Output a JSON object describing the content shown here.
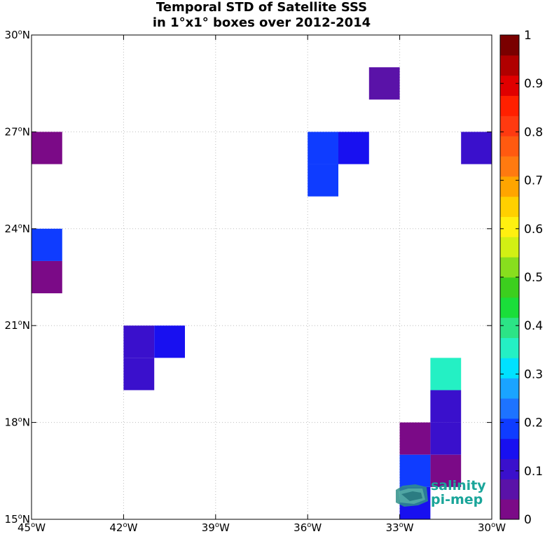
{
  "title_line1": "Temporal STD of Satellite SSS",
  "title_line2": "in 1°x1° boxes over 2012-2014",
  "logo": {
    "line1": "salinity",
    "line2": "pi-mep"
  },
  "chart_data": {
    "type": "heatmap",
    "x_axis": {
      "range": [
        -45,
        -30
      ],
      "ticks": [
        -45,
        -42,
        -39,
        -36,
        -33,
        -30
      ],
      "tick_labels": [
        "45°W",
        "42°W",
        "39°W",
        "36°W",
        "33°W",
        "30°W"
      ]
    },
    "y_axis": {
      "range": [
        15,
        30
      ],
      "ticks": [
        15,
        18,
        21,
        24,
        27,
        30
      ],
      "tick_labels": [
        "15°N",
        "18°N",
        "21°N",
        "24°N",
        "27°N",
        "30°N"
      ]
    },
    "grid": true,
    "cell_size_deg": 1,
    "cells": [
      {
        "lon": -45,
        "lat": 26,
        "value": 0.02
      },
      {
        "lon": -45,
        "lat": 23,
        "value": 0.18
      },
      {
        "lon": -45,
        "lat": 22,
        "value": 0.02
      },
      {
        "lon": -42,
        "lat": 19,
        "value": 0.12
      },
      {
        "lon": -42,
        "lat": 20,
        "value": 0.12
      },
      {
        "lon": -41,
        "lat": 20,
        "value": 0.16
      },
      {
        "lon": -36,
        "lat": 26,
        "value": 0.18
      },
      {
        "lon": -36,
        "lat": 25,
        "value": 0.18
      },
      {
        "lon": -35,
        "lat": 26,
        "value": 0.16
      },
      {
        "lon": -34,
        "lat": 28,
        "value": 0.06
      },
      {
        "lon": -31,
        "lat": 26,
        "value": 0.12
      },
      {
        "lon": -32,
        "lat": 19,
        "value": 0.36
      },
      {
        "lon": -32,
        "lat": 18,
        "value": 0.12
      },
      {
        "lon": -32,
        "lat": 17,
        "value": 0.12
      },
      {
        "lon": -33,
        "lat": 17,
        "value": 0.02
      },
      {
        "lon": -32,
        "lat": 16,
        "value": 0.02
      },
      {
        "lon": -33,
        "lat": 16,
        "value": 0.18
      },
      {
        "lon": -33,
        "lat": 15,
        "value": 0.16
      }
    ],
    "colorbar": {
      "range": [
        0,
        1
      ],
      "tick_labels": [
        "0",
        "0.1",
        "0.2",
        "0.3",
        "0.4",
        "0.5",
        "0.6",
        "0.7",
        "0.8",
        "0.9",
        "1"
      ],
      "colors": [
        "#7b0a87",
        "#5a12a8",
        "#3a10cc",
        "#1810f0",
        "#0f3cff",
        "#1d73ff",
        "#1aa4ff",
        "#00e1ff",
        "#24f0c4",
        "#2ce486",
        "#1ade3a",
        "#3ccf1e",
        "#88de1e",
        "#d2f014",
        "#fff010",
        "#ffd000",
        "#ffa500",
        "#ff7a10",
        "#ff5a10",
        "#ff3a10",
        "#ff2000",
        "#e00000",
        "#b00000",
        "#7a0000"
      ]
    }
  }
}
